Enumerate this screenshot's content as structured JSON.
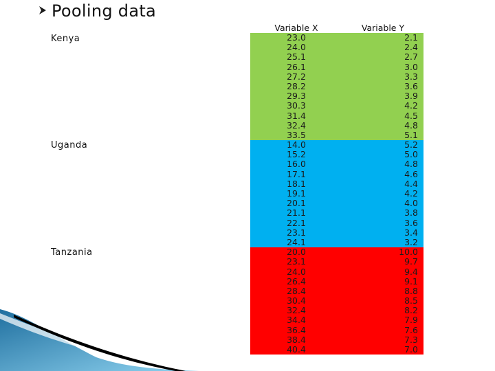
{
  "slide": {
    "title": "Pooling data",
    "bullet_icon": "arrow-bullet-icon"
  },
  "table": {
    "headers": [
      "Variable X",
      "Variable Y"
    ],
    "groups": [
      {
        "country": "Kenya",
        "color": "#92d050",
        "rows": [
          [
            "23.0",
            "2.1"
          ],
          [
            "24.0",
            "2.4"
          ],
          [
            "25.1",
            "2.7"
          ],
          [
            "26.1",
            "3.0"
          ],
          [
            "27.2",
            "3.3"
          ],
          [
            "28.2",
            "3.6"
          ],
          [
            "29.3",
            "3.9"
          ],
          [
            "30.3",
            "4.2"
          ],
          [
            "31.4",
            "4.5"
          ],
          [
            "32.4",
            "4.8"
          ],
          [
            "33.5",
            "5.1"
          ]
        ]
      },
      {
        "country": "Uganda",
        "color": "#00b0f0",
        "rows": [
          [
            "14.0",
            "5.2"
          ],
          [
            "15.2",
            "5.0"
          ],
          [
            "16.0",
            "4.8"
          ],
          [
            "17.1",
            "4.6"
          ],
          [
            "18.1",
            "4.4"
          ],
          [
            "19.1",
            "4.2"
          ],
          [
            "20.1",
            "4.0"
          ],
          [
            "21.1",
            "3.8"
          ],
          [
            "22.1",
            "3.6"
          ],
          [
            "23.1",
            "3.4"
          ],
          [
            "24.1",
            "3.2"
          ]
        ]
      },
      {
        "country": "Tanzania",
        "color": "#ff0000",
        "rows": [
          [
            "20.0",
            "10.0"
          ],
          [
            "23.1",
            "9.7"
          ],
          [
            "24.0",
            "9.4"
          ],
          [
            "26.4",
            "9.1"
          ],
          [
            "28.4",
            "8.8"
          ],
          [
            "30.4",
            "8.5"
          ],
          [
            "32.4",
            "8.2"
          ],
          [
            "34.4",
            "7.9"
          ],
          [
            "36.4",
            "7.6"
          ],
          [
            "38.4",
            "7.3"
          ],
          [
            "40.4",
            "7.0"
          ]
        ]
      }
    ]
  },
  "decoration": {
    "swoosh_colors": [
      "#1f6f9f",
      "#5bb6e0",
      "#000000"
    ]
  }
}
